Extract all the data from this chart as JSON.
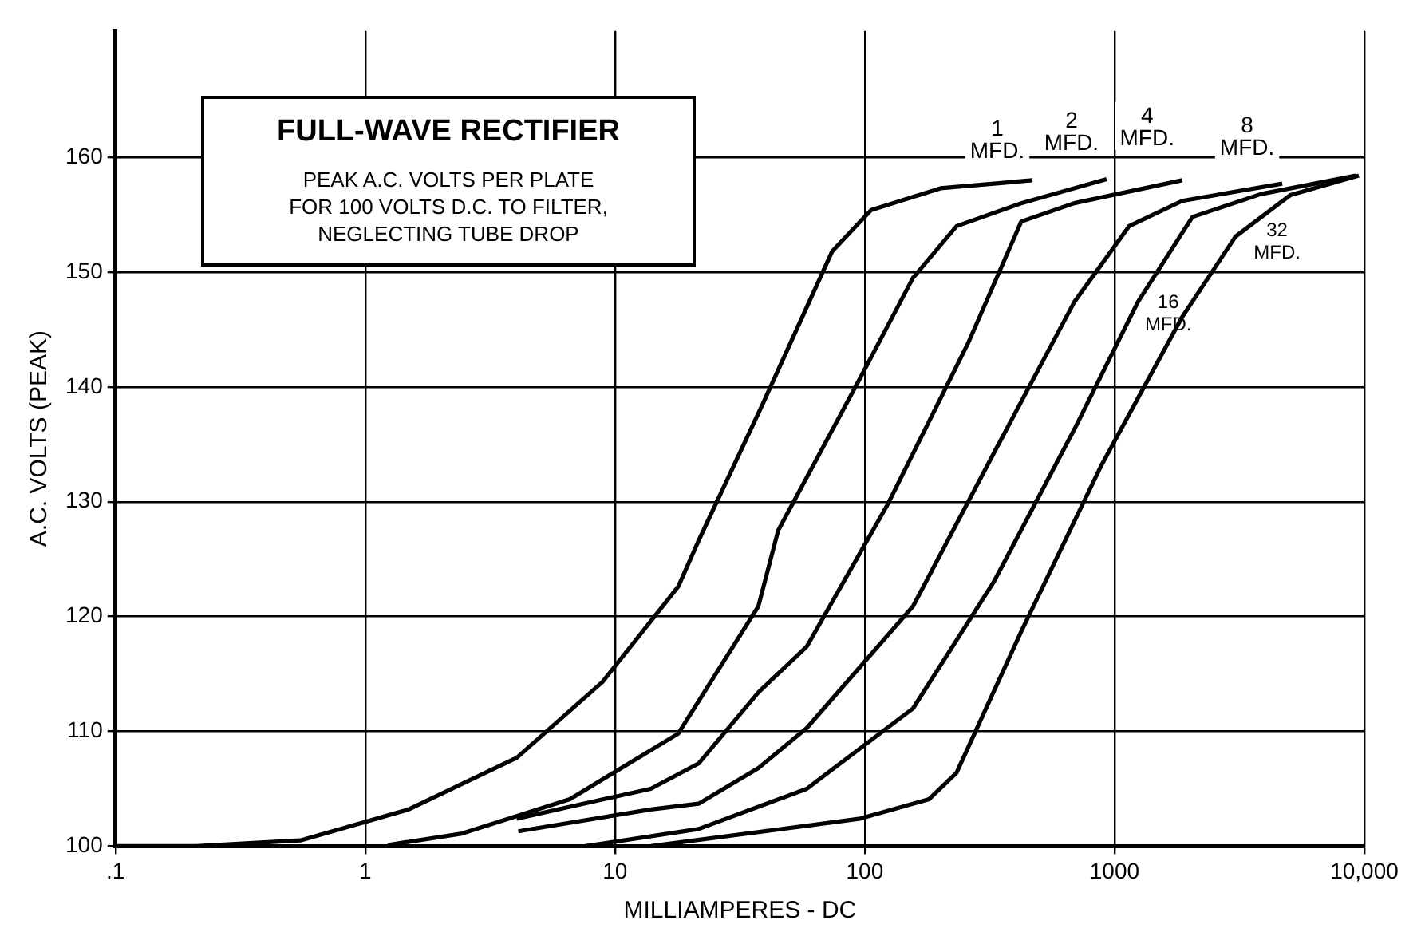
{
  "chart_data": {
    "type": "line",
    "title": "FULL-WAVE RECTIFIER",
    "subtitle": "PEAK A.C. VOLTS PER PLATE\nFOR 100 VOLTS D.C. TO FILTER,\nNEGLECTING TUBE DROP",
    "xlabel": "MILLIAMPERES - DC",
    "ylabel": "A.C. VOLTS (PEAK)",
    "log": "x",
    "grid": true,
    "legend": false,
    "marker": "none",
    "line_style": "solid",
    "xlim": [
      0.1,
      10000
    ],
    "xticks": [
      {
        "value": 0.1,
        "label": ".1"
      },
      1,
      10,
      100,
      1000,
      {
        "value": 10000,
        "label": "10,000"
      }
    ],
    "ylim": [
      100,
      171
    ],
    "yticks": [
      100,
      110,
      120,
      130,
      140,
      150,
      160
    ],
    "series": [
      {
        "name": "1 MFD.",
        "color": "#000000",
        "x": [
          0.1,
          0.21,
          0.55,
          1.49,
          4.04,
          8.9,
          17.9,
          21.6,
          39,
          74,
          106,
          201,
          469
        ],
        "values": [
          100,
          100,
          100.5,
          103.2,
          107.7,
          114.3,
          122.6,
          126.6,
          138.5,
          151.8,
          155.4,
          157.3,
          158
        ]
      },
      {
        "name": "2 MFD.",
        "color": "#000000",
        "x": [
          1.23,
          2.44,
          6.6,
          17.9,
          37.5,
          45,
          96,
          156,
          233,
          423,
          929
        ],
        "values": [
          100.1,
          101.1,
          104.1,
          109.8,
          120.9,
          127.5,
          140.8,
          149.5,
          154,
          156,
          158.1
        ]
      },
      {
        "name": "4 MFD.",
        "color": "#000000",
        "x": [
          4.04,
          13.9,
          21.6,
          37.5,
          58.6,
          123,
          259,
          423,
          690,
          1866
        ],
        "values": [
          102.4,
          105,
          107.2,
          113.4,
          117.4,
          129.7,
          143.8,
          154.4,
          156,
          158
        ]
      },
      {
        "name": "8 MFD.",
        "color": "#000000",
        "x": [
          4.1,
          13.9,
          21.6,
          37.5,
          58.6,
          156,
          328,
          690,
          1143,
          1866,
          4690
        ],
        "values": [
          101.3,
          103.2,
          103.7,
          106.8,
          110.3,
          120.9,
          134.2,
          147.4,
          154,
          156.2,
          157.7
        ]
      },
      {
        "name": "16 MFD.",
        "color": "#000000",
        "x": [
          7.6,
          21.6,
          58.6,
          156,
          328,
          690,
          1240,
          2050,
          3860,
          9240
        ],
        "values": [
          100,
          101.5,
          105,
          112,
          123,
          136.3,
          147.4,
          154.8,
          156.8,
          158.4
        ]
      },
      {
        "name": "32 MFD.",
        "color": "#000000",
        "x": [
          13.9,
          96,
          181,
          233,
          423,
          887,
          1866,
          3050,
          5050,
          9500
        ],
        "values": [
          100,
          102.4,
          104.1,
          106.4,
          118.7,
          133.2,
          146.1,
          153.1,
          156.7,
          158.4
        ]
      }
    ]
  }
}
